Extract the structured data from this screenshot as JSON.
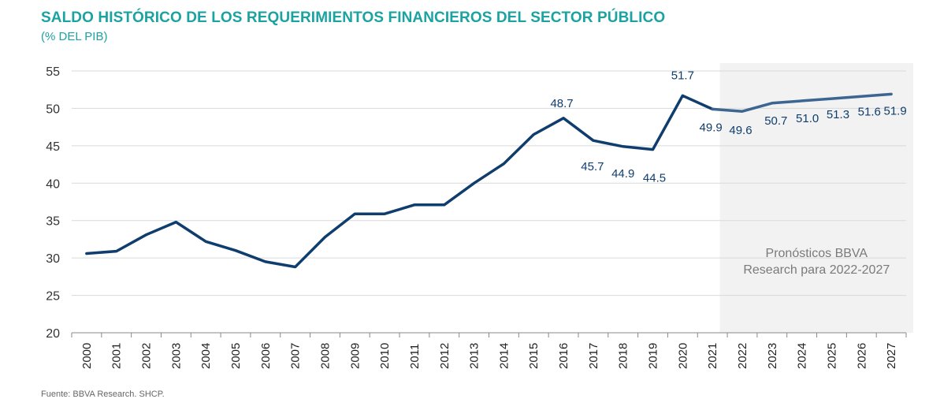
{
  "header": {
    "title": "SALDO HISTÓRICO DE LOS REQUERIMIENTOS FINANCIEROS DEL SECTOR PÚBLICO",
    "subtitle": "(% DEL PIB)"
  },
  "footer": {
    "source": "Fuente: BBVA Research. SHCP."
  },
  "chart_data": {
    "type": "line",
    "title": "SALDO HISTÓRICO DE LOS REQUERIMIENTOS FINANCIEROS DEL SECTOR PÚBLICO",
    "subtitle": "(% DEL PIB)",
    "x": [
      "2000",
      "2001",
      "2002",
      "2003",
      "2004",
      "2005",
      "2006",
      "2007",
      "2008",
      "2009",
      "2010",
      "2011",
      "2012",
      "2013",
      "2014",
      "2015",
      "2016",
      "2017",
      "2018",
      "2019",
      "2020",
      "2021",
      "2022",
      "2023",
      "2024",
      "2025",
      "2026",
      "2027"
    ],
    "series": [
      {
        "values": [
          30.6,
          30.9,
          33.1,
          34.8,
          32.2,
          31.0,
          29.5,
          28.8,
          32.8,
          35.9,
          35.9,
          37.1,
          37.1,
          40.0,
          42.6,
          46.5,
          48.7,
          45.7,
          44.9,
          44.5,
          51.7,
          49.9,
          49.6,
          50.7,
          51.0,
          51.3,
          51.6,
          51.9
        ],
        "color_historical": "#0f3e6e",
        "color_forecast": "#3c6591"
      }
    ],
    "data_labels": [
      {
        "x": "2016",
        "text": "48.7"
      },
      {
        "x": "2017",
        "text": "45.7"
      },
      {
        "x": "2018",
        "text": "44.9"
      },
      {
        "x": "2019",
        "text": "44.5"
      },
      {
        "x": "2020",
        "text": "51.7"
      },
      {
        "x": "2021",
        "text": "49.9"
      },
      {
        "x": "2022",
        "text": "49.6"
      },
      {
        "x": "2023",
        "text": "50.7"
      },
      {
        "x": "2024",
        "text": "51.0"
      },
      {
        "x": "2025",
        "text": "51.3"
      },
      {
        "x": "2026",
        "text": "51.6"
      },
      {
        "x": "2027",
        "text": "51.9"
      }
    ],
    "ylim": [
      20,
      55
    ],
    "yticks": [
      20,
      25,
      30,
      35,
      40,
      45,
      50,
      55
    ],
    "grid": true,
    "forecast_region": {
      "from": "2022",
      "to": "2027",
      "label_lines": [
        "Pronósticos BBVA",
        "Research para 2022-2027"
      ],
      "color": "#f2f2f2"
    },
    "legend": "none"
  }
}
